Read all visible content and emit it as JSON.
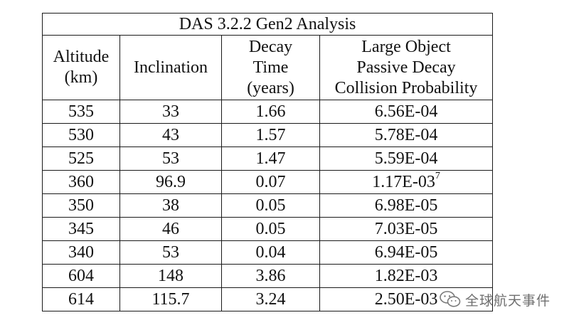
{
  "table": {
    "title": "DAS 3.2.2 Gen2 Analysis",
    "headers": [
      [
        "Altitude",
        "(km)"
      ],
      [
        "Inclination"
      ],
      [
        "Decay",
        "Time",
        "(years)"
      ],
      [
        "Large Object",
        "Passive Decay",
        "Collision Probability"
      ]
    ],
    "rows": [
      {
        "altitude": "535",
        "inclination": "33",
        "decay_time": "1.66",
        "probability": "6.56E-04",
        "footnote": ""
      },
      {
        "altitude": "530",
        "inclination": "43",
        "decay_time": "1.57",
        "probability": "5.78E-04",
        "footnote": ""
      },
      {
        "altitude": "525",
        "inclination": "53",
        "decay_time": "1.47",
        "probability": "5.59E-04",
        "footnote": ""
      },
      {
        "altitude": "360",
        "inclination": "96.9",
        "decay_time": "0.07",
        "probability": "1.17E-03",
        "footnote": "7"
      },
      {
        "altitude": "350",
        "inclination": "38",
        "decay_time": "0.05",
        "probability": "6.98E-05",
        "footnote": ""
      },
      {
        "altitude": "345",
        "inclination": "46",
        "decay_time": "0.05",
        "probability": "7.03E-05",
        "footnote": ""
      },
      {
        "altitude": "340",
        "inclination": "53",
        "decay_time": "0.04",
        "probability": "6.94E-05",
        "footnote": ""
      },
      {
        "altitude": "604",
        "inclination": "148",
        "decay_time": "3.86",
        "probability": "1.82E-03",
        "footnote": ""
      },
      {
        "altitude": "614",
        "inclination": "115.7",
        "decay_time": "3.24",
        "probability": "2.50E-03",
        "footnote": ""
      }
    ]
  },
  "watermark": {
    "text": "全球航天事件",
    "icon": "wechat-logo-icon"
  }
}
